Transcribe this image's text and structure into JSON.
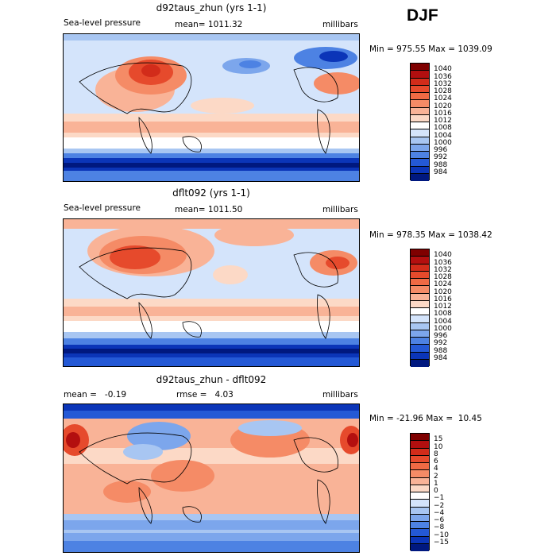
{
  "season": "DJF",
  "panels": [
    {
      "title": "d92taus_zhun (yrs 1-1)",
      "left_label": "Sea-level pressure",
      "center_label": "mean= 1011.32",
      "right_label": "millibars",
      "minmax": "Min = 975.55 Max = 1039.09",
      "colorbar": [
        "1040",
        "1036",
        "1032",
        "1028",
        "1024",
        "1020",
        "1016",
        "1012",
        "1008",
        "1004",
        "1000",
        "996",
        "992",
        "988",
        "984"
      ]
    },
    {
      "title": "dflt092 (yrs 1-1)",
      "left_label": "Sea-level pressure",
      "center_label": "mean= 1011.50",
      "right_label": "millibars",
      "minmax": "Min = 978.35 Max = 1038.42",
      "colorbar": [
        "1040",
        "1036",
        "1032",
        "1028",
        "1024",
        "1020",
        "1016",
        "1012",
        "1008",
        "1004",
        "1000",
        "996",
        "992",
        "988",
        "984"
      ]
    },
    {
      "title": "d92taus_zhun - dflt092",
      "left_label": "mean =   -0.19",
      "center_label": "rmse =   4.03",
      "right_label": "millibars",
      "minmax": "Min = -21.96 Max =  10.45",
      "colorbar": [
        "15",
        "10",
        "8",
        "6",
        "4",
        "2",
        "1",
        "0",
        "−1",
        "−2",
        "−4",
        "−6",
        "−8",
        "−10",
        "−15"
      ]
    }
  ],
  "colors": {
    "scale": [
      "#7f0000",
      "#b30f0f",
      "#d22c1a",
      "#e64a2c",
      "#f06a44",
      "#f58b66",
      "#f9b397",
      "#fcd9c6",
      "#ffffff",
      "#d4e4fb",
      "#a8c6f2",
      "#7ca6ec",
      "#4d82e3",
      "#2459d6",
      "#0b35b8",
      "#00187f"
    ]
  }
}
